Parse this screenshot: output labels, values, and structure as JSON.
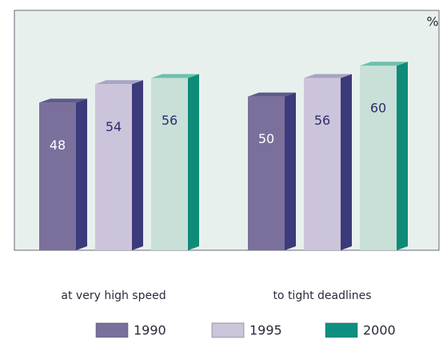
{
  "chart_data": {
    "type": "bar",
    "y_label": "%",
    "categories": [
      "at very high speed",
      "to tight deadlines"
    ],
    "series": [
      {
        "name": "1990",
        "color": "#7b6f9c",
        "values": [
          48,
          50
        ]
      },
      {
        "name": "1995",
        "color": "#ccc4da",
        "values": [
          54,
          56
        ]
      },
      {
        "name": "2000",
        "color": "#0e9080",
        "values": [
          56,
          60
        ]
      }
    ],
    "ylim": [
      0,
      78
    ]
  }
}
